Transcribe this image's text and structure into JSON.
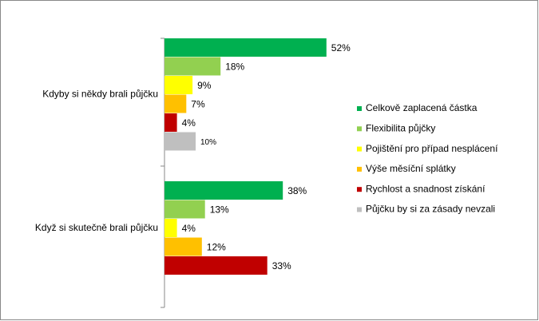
{
  "chart_data": {
    "type": "bar",
    "orientation": "horizontal",
    "categories": [
      "Kdyby si někdy brali půjčku",
      "Když si skutečně brali půjčku"
    ],
    "series": [
      {
        "name": "Celkově zaplacená částka",
        "color": "#00b050",
        "values": [
          52,
          38
        ],
        "value_labels": [
          "52%",
          "38%"
        ]
      },
      {
        "name": "Flexibilita půjčky",
        "color": "#92d050",
        "values": [
          18,
          13
        ],
        "value_labels": [
          "18%",
          "13%"
        ]
      },
      {
        "name": "Pojištění pro případ nesplácení",
        "color": "#ffff00",
        "values": [
          9,
          4
        ],
        "value_labels": [
          "9%",
          "4%"
        ]
      },
      {
        "name": "Výše měsíční splátky",
        "color": "#ffc000",
        "values": [
          7,
          12
        ],
        "value_labels": [
          "7%",
          "12%"
        ]
      },
      {
        "name": "Rychlost a snadnost získání",
        "color": "#c00000",
        "values": [
          4,
          33
        ],
        "value_labels": [
          "4%",
          "33%"
        ]
      },
      {
        "name": "Půjčku by si za zásady nevzali",
        "color": "#bfbfbf",
        "values": [
          10,
          null
        ],
        "value_labels": [
          "10%",
          null
        ]
      }
    ],
    "legend": "right"
  }
}
